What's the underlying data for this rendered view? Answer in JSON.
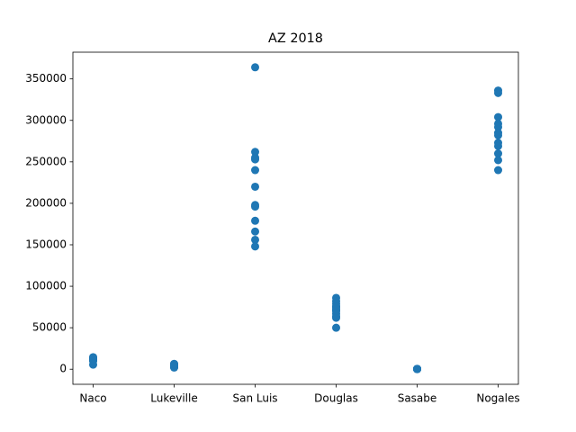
{
  "chart_data": {
    "type": "scatter",
    "title": "AZ 2018",
    "categories": [
      "Naco",
      "Lukeville",
      "San Luis",
      "Douglas",
      "Sasabe",
      "Nogales"
    ],
    "color": "#1f77b4",
    "values": [
      [
        14000,
        13500,
        12500,
        12000,
        11500,
        11000,
        10500,
        10000,
        12000,
        13000,
        14500,
        5500
      ],
      [
        6000,
        5000,
        4500,
        4000,
        3500,
        3000,
        2500,
        2000,
        2500,
        3000,
        5500,
        6500
      ],
      [
        364000,
        262000,
        255000,
        253000,
        240000,
        220000,
        198000,
        196000,
        179000,
        166000,
        156000,
        148000
      ],
      [
        86000,
        82000,
        79000,
        76000,
        73000,
        70000,
        67000,
        64000,
        62000,
        50000,
        71000,
        75000
      ],
      [
        300,
        200,
        150,
        250,
        300,
        400,
        350,
        200,
        100,
        250,
        300,
        200
      ],
      [
        336000,
        333000,
        304000,
        296000,
        292000,
        285000,
        282000,
        273000,
        269000,
        260000,
        252000,
        240000
      ]
    ],
    "ylim": [
      -18200,
      382200
    ],
    "yticks": [
      0,
      50000,
      100000,
      150000,
      200000,
      250000,
      300000,
      350000
    ]
  }
}
